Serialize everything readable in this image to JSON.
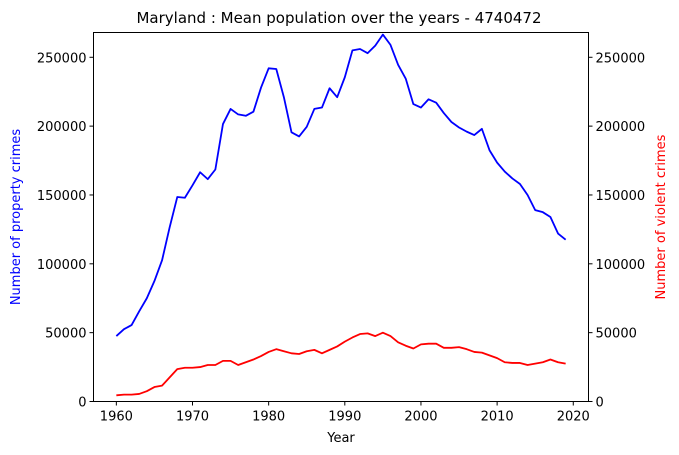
{
  "chart_data": {
    "type": "line",
    "title": "Maryland : Mean population over the years - 4740472",
    "xlabel": "Year",
    "ylabel_left": "Number of property crimes",
    "ylabel_right": "Number of violent crimes",
    "xlim": [
      1957,
      2022
    ],
    "ylim": [
      0,
      268000
    ],
    "xticks": [
      1960,
      1970,
      1980,
      1990,
      2000,
      2010,
      2020
    ],
    "yticks": [
      0,
      50000,
      100000,
      150000,
      200000,
      250000
    ],
    "grid": false,
    "x": [
      1960,
      1961,
      1962,
      1963,
      1964,
      1965,
      1966,
      1967,
      1968,
      1969,
      1970,
      1971,
      1972,
      1973,
      1974,
      1975,
      1976,
      1977,
      1978,
      1979,
      1980,
      1981,
      1982,
      1983,
      1984,
      1985,
      1986,
      1987,
      1988,
      1989,
      1990,
      1991,
      1992,
      1993,
      1994,
      1995,
      1996,
      1997,
      1998,
      1999,
      2000,
      2001,
      2002,
      2003,
      2004,
      2005,
      2006,
      2007,
      2008,
      2009,
      2010,
      2011,
      2012,
      2013,
      2014,
      2015,
      2016,
      2017,
      2018,
      2019
    ],
    "series": [
      {
        "name": "Number of property crimes",
        "color": "#0000ff",
        "axis": "left",
        "values": [
          47500,
          52500,
          55500,
          65500,
          75000,
          87500,
          102500,
          126500,
          148500,
          148000,
          157000,
          166500,
          161500,
          168500,
          201500,
          212500,
          208500,
          207500,
          210500,
          228000,
          242000,
          241500,
          221000,
          195500,
          192500,
          199500,
          212500,
          213500,
          227500,
          221000,
          235500,
          255000,
          256000,
          253000,
          258500,
          266500,
          259000,
          244500,
          234500,
          216000,
          213500,
          219500,
          217000,
          209500,
          203000,
          199000,
          196000,
          193500,
          198000,
          182500,
          173500,
          167000,
          162000,
          158000,
          150000,
          139000,
          137500,
          134000,
          122000,
          117500
        ]
      },
      {
        "name": "Number of violent crimes",
        "color": "#ff0000",
        "axis": "right",
        "values": [
          4500,
          5000,
          5000,
          5500,
          7500,
          10500,
          11500,
          17500,
          23500,
          24500,
          24500,
          25000,
          26500,
          26500,
          29500,
          29500,
          26500,
          28500,
          30500,
          33000,
          36000,
          38000,
          36500,
          35000,
          34500,
          36500,
          37500,
          35000,
          37500,
          40000,
          43500,
          46500,
          49000,
          49500,
          47500,
          50000,
          47500,
          43000,
          40500,
          38500,
          41500,
          42000,
          42000,
          39000,
          39000,
          39500,
          38000,
          36000,
          35500,
          33500,
          31500,
          28500,
          28000,
          28000,
          26500,
          27500,
          28500,
          30500,
          28500,
          27500
        ]
      }
    ]
  }
}
